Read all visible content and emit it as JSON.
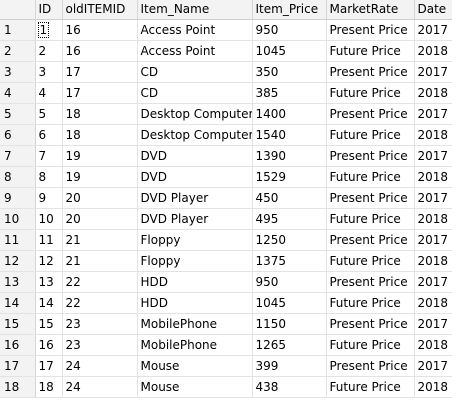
{
  "columns": [
    "",
    "ID",
    "oldITEMID",
    "Item_Name",
    "Item_Price",
    "MarketRate",
    "Date"
  ],
  "rows": [
    [
      "1",
      "1",
      "16",
      "Access Point",
      "950",
      "Present Price",
      "2017"
    ],
    [
      "2",
      "2",
      "16",
      "Access Point",
      "1045",
      "Future Price",
      "2018"
    ],
    [
      "3",
      "3",
      "17",
      "CD",
      "350",
      "Present Price",
      "2017"
    ],
    [
      "4",
      "4",
      "17",
      "CD",
      "385",
      "Future Price",
      "2018"
    ],
    [
      "5",
      "5",
      "18",
      "Desktop Computer",
      "1400",
      "Present Price",
      "2017"
    ],
    [
      "6",
      "6",
      "18",
      "Desktop Computer",
      "1540",
      "Future Price",
      "2018"
    ],
    [
      "7",
      "7",
      "19",
      "DVD",
      "1390",
      "Present Price",
      "2017"
    ],
    [
      "8",
      "8",
      "19",
      "DVD",
      "1529",
      "Future Price",
      "2018"
    ],
    [
      "9",
      "9",
      "20",
      "DVD Player",
      "450",
      "Present Price",
      "2017"
    ],
    [
      "10",
      "10",
      "20",
      "DVD Player",
      "495",
      "Future Price",
      "2018"
    ],
    [
      "11",
      "11",
      "21",
      "Floppy",
      "1250",
      "Present Price",
      "2017"
    ],
    [
      "12",
      "12",
      "21",
      "Floppy",
      "1375",
      "Future Price",
      "2018"
    ],
    [
      "13",
      "13",
      "22",
      "HDD",
      "950",
      "Present Price",
      "2017"
    ],
    [
      "14",
      "14",
      "22",
      "HDD",
      "1045",
      "Future Price",
      "2018"
    ],
    [
      "15",
      "15",
      "23",
      "MobilePhone",
      "1150",
      "Present Price",
      "2017"
    ],
    [
      "16",
      "16",
      "23",
      "MobilePhone",
      "1265",
      "Future Price",
      "2018"
    ],
    [
      "17",
      "17",
      "24",
      "Mouse",
      "399",
      "Present Price",
      "2017"
    ],
    [
      "18",
      "18",
      "24",
      "Mouse",
      "438",
      "Future Price",
      "2018"
    ]
  ],
  "colors": {
    "header_bg": "#f3f3f3",
    "grid_line": "#e3e3e3",
    "text": "#000000"
  }
}
